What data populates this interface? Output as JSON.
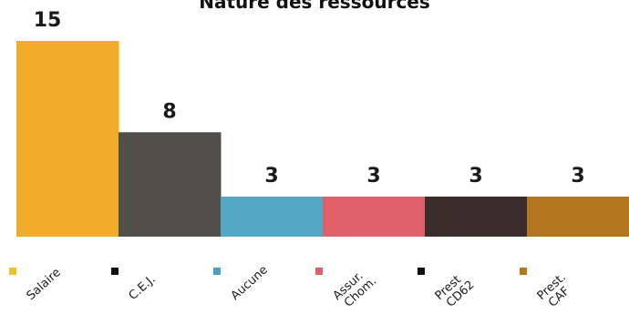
{
  "chart_data": {
    "type": "bar",
    "title": "Nature des ressources",
    "categories": [
      [
        "Salaire"
      ],
      [
        "C.E.J."
      ],
      [
        "Aucune"
      ],
      [
        "Assur.",
        "Chom."
      ],
      [
        "Prest",
        "CD62"
      ],
      [
        "Prest.",
        "CAF"
      ]
    ],
    "values": [
      15,
      8,
      3,
      3,
      3,
      3
    ],
    "colors": [
      "#f0ac28",
      "#505048",
      "#55a7c6",
      "#e0606a",
      "#3a2e2c",
      "#b4761e"
    ],
    "legend_marker_colors": [
      "#f0c030",
      "#111111",
      "#4a9fbf",
      "#e0606a",
      "#111111",
      "#b4761e"
    ],
    "ylim": [
      0,
      15
    ],
    "grid": false,
    "legend": "bottom"
  }
}
